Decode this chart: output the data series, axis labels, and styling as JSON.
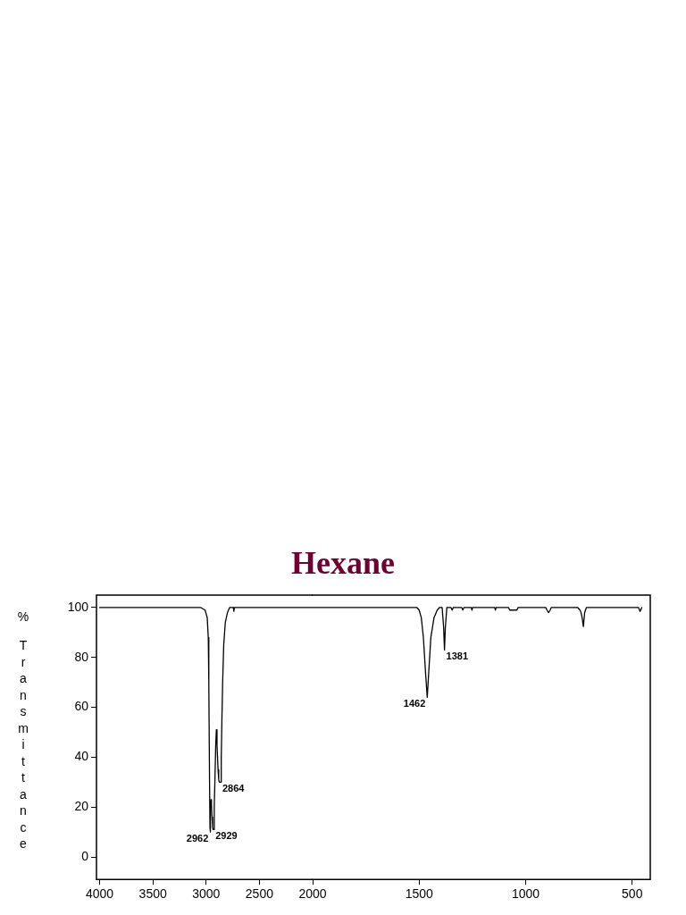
{
  "chart_data": [
    {
      "type": "line",
      "title": "Hexane",
      "ylabel": "% Transmittance",
      "xlim": [
        4030,
        2000
      ],
      "xticks": [
        4000,
        3500,
        3000,
        2500
      ],
      "ylim": [
        -9,
        105
      ],
      "yticks": [
        0,
        20,
        40,
        60,
        80,
        100
      ],
      "grid": false,
      "legend": false,
      "marker": "none",
      "line_style": "solid",
      "series": [
        {
          "color": "#000000",
          "x": [
            4000,
            3050,
            3010,
            2990,
            2980,
            2975,
            2968,
            2964,
            2962,
            2960,
            2958,
            2954,
            2950,
            2945,
            2940,
            2935,
            2929,
            2924,
            2918,
            2910,
            2904,
            2898,
            2893,
            2888,
            2882,
            2876,
            2870,
            2864,
            2858,
            2852,
            2845,
            2835,
            2820,
            2800,
            2780,
            2760,
            2745,
            2740,
            2735,
            2000
          ],
          "values": [
            100,
            100,
            99,
            96,
            88,
            70,
            30,
            12,
            10,
            12,
            20,
            23,
            21,
            16,
            12,
            11,
            11,
            20,
            30,
            45,
            51,
            45,
            40,
            35,
            31,
            30,
            30,
            30,
            40,
            55,
            70,
            85,
            94,
            98,
            100,
            100,
            100,
            98.5,
            100,
            100
          ]
        }
      ],
      "annotations": [
        {
          "text": "2962",
          "x": 2962,
          "y": 10
        },
        {
          "text": "2929",
          "x": 2929,
          "y": 11
        },
        {
          "text": "2864",
          "x": 2864,
          "y": 30
        }
      ]
    },
    {
      "type": "line",
      "xlim": [
        2000,
        415
      ],
      "xticks": [
        2000,
        1500,
        1000,
        500
      ],
      "ylim": [
        -9,
        105
      ],
      "yticks": [
        0,
        20,
        40,
        60,
        80,
        100
      ],
      "tick_labels": "x",
      "grid": false,
      "legend": false,
      "marker": "none",
      "line_style": "solid",
      "series": [
        {
          "color": "#000000",
          "x": [
            2000,
            1510,
            1500,
            1490,
            1480,
            1470,
            1462,
            1455,
            1445,
            1430,
            1415,
            1405,
            1392,
            1385,
            1381,
            1377,
            1370,
            1350,
            1345,
            1340,
            1300,
            1295,
            1290,
            1255,
            1252,
            1249,
            1145,
            1142,
            1139,
            1080,
            1075,
            1060,
            1045,
            1041,
            1036,
            905,
            900,
            892,
            885,
            880,
            755,
            745,
            740,
            735,
            729,
            723,
            715,
            470,
            463,
            455
          ],
          "values": [
            100,
            100,
            99,
            96,
            88,
            74,
            64,
            74,
            88,
            96,
            99,
            100,
            100,
            92,
            83,
            92,
            100,
            100,
            99,
            100,
            100,
            99,
            100,
            100,
            99,
            100,
            100,
            99,
            100,
            100,
            99,
            99,
            99,
            99,
            100,
            100,
            99,
            98,
            99,
            100,
            100,
            99,
            98,
            96,
            92.4,
            98,
            100,
            100,
            98.5,
            100
          ]
        }
      ],
      "annotations": [
        {
          "text": "1462",
          "x": 1462,
          "y": 64
        },
        {
          "text": "1381",
          "x": 1381,
          "y": 83
        }
      ]
    }
  ]
}
